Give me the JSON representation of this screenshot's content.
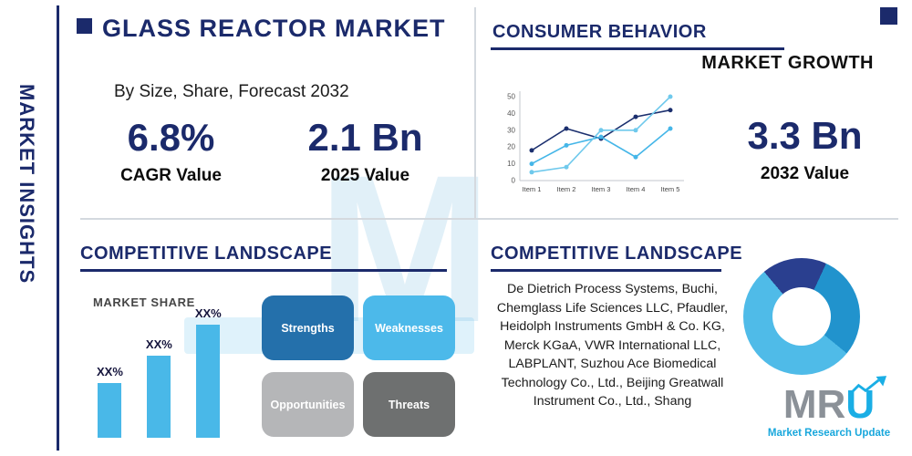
{
  "brand": {
    "watermark_letter": "M",
    "logo": {
      "gray_letters": "MR",
      "blue_letter": "U",
      "tagline": "Market Research Update"
    }
  },
  "left_rail": {
    "label": "MARKET INSIGHTS"
  },
  "header": {
    "title": "GLASS REACTOR MARKET",
    "subtitle": "By Size, Share, Forecast 2032"
  },
  "stats": [
    {
      "value": "6.8%",
      "label": "CAGR Value"
    },
    {
      "value": "2.1 Bn",
      "label": "2025 Value"
    },
    {
      "value": "3.3 Bn",
      "label": "2032 Value"
    }
  ],
  "consumer_behavior": {
    "title": "CONSUMER BEHAVIOR",
    "subtitle": "MARKET GROWTH"
  },
  "sections": {
    "left": {
      "title": "COMPETITIVE LANDSCAPE",
      "market_share_label": "MARKET SHARE"
    },
    "right": {
      "title": "COMPETITIVE LANDSCAPE",
      "companies": "De Dietrich Process Systems, Buchi, Chemglass Life Sciences LLC, Pfaudler, Heidolph Instruments GmbH & Co. KG, Merck KGaA, VWR International LLC, LABPLANT, Suzhou Ace Biomedical Technology Co., Ltd., Beijing Greatwall Instrument Co., Ltd., Shang"
    }
  },
  "swot": [
    {
      "label": "Strengths",
      "color": "#2470ab"
    },
    {
      "label": "Weaknesses",
      "color": "#4cb9ea"
    },
    {
      "label": "Opportunities",
      "color": "#b5b6b8"
    },
    {
      "label": "Threats",
      "color": "#6e7070"
    }
  ],
  "chart_data": [
    {
      "type": "line",
      "title": "MARKET GROWTH",
      "x": [
        "Item 1",
        "Item 2",
        "Item 3",
        "Item 4",
        "Item 5"
      ],
      "series": [
        {
          "name": "navy-series",
          "color": "#1b2f6e",
          "values": [
            18,
            31,
            25,
            38,
            42
          ]
        },
        {
          "name": "light-blue-series",
          "color": "#45b6e8",
          "values": [
            10,
            21,
            26,
            14,
            31
          ]
        },
        {
          "name": "cyan-series",
          "color": "#6fc9ec",
          "values": [
            5,
            8,
            30,
            30,
            50
          ]
        }
      ],
      "ylim": [
        0,
        50
      ],
      "yticks": [
        0,
        10,
        20,
        30,
        40,
        50
      ],
      "grid": false,
      "legend": "none"
    },
    {
      "type": "bar",
      "title": "MARKET SHARE",
      "labels": [
        "XX%",
        "XX%",
        "XX%"
      ],
      "relative_heights": [
        30,
        45,
        62
      ],
      "color": "#49b8e8"
    },
    {
      "type": "donut",
      "start_deg": -40,
      "segments": [
        {
          "name": "navy-slice",
          "color": "#2a3f8f",
          "value": 18
        },
        {
          "name": "medium-blue-slice",
          "color": "#2193cd",
          "value": 29
        },
        {
          "name": "light-blue-slice",
          "color": "#4fbbe8",
          "value": 53
        }
      ]
    }
  ],
  "colors": {
    "navy": "#1b2a6b",
    "light_blue": "#45b6e8",
    "logo_teal": "#1aaee5",
    "divider": "#d4d9df"
  }
}
